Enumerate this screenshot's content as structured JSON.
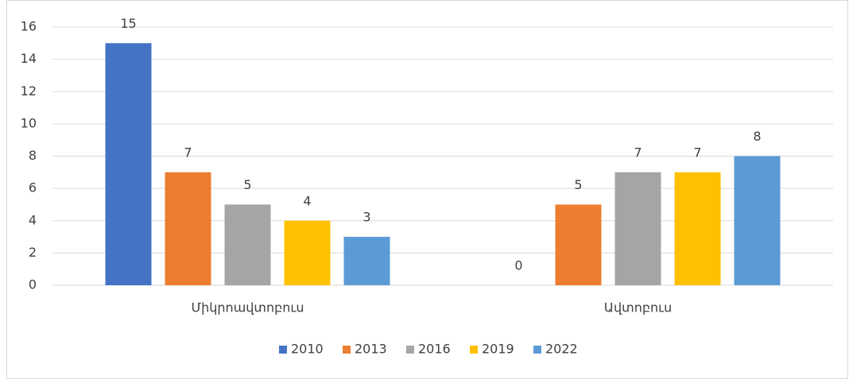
{
  "chart_data": {
    "type": "bar",
    "categories": [
      "Միկրոավտոբուս",
      "Ավտոբուս"
    ],
    "series": [
      {
        "name": "2010",
        "color": "#4472c4",
        "values": [
          15,
          0
        ]
      },
      {
        "name": "2013",
        "color": "#ed7d31",
        "values": [
          7,
          5
        ]
      },
      {
        "name": "2016",
        "color": "#a5a5a5",
        "values": [
          5,
          7
        ]
      },
      {
        "name": "2019",
        "color": "#ffc000",
        "values": [
          4,
          7
        ]
      },
      {
        "name": "2022",
        "color": "#5b9bd5",
        "values": [
          3,
          8
        ]
      }
    ],
    "ylim": [
      0,
      16
    ],
    "yticks": [
      0,
      2,
      4,
      6,
      8,
      10,
      12,
      14,
      16
    ],
    "grid": true,
    "legend": "bottom"
  }
}
